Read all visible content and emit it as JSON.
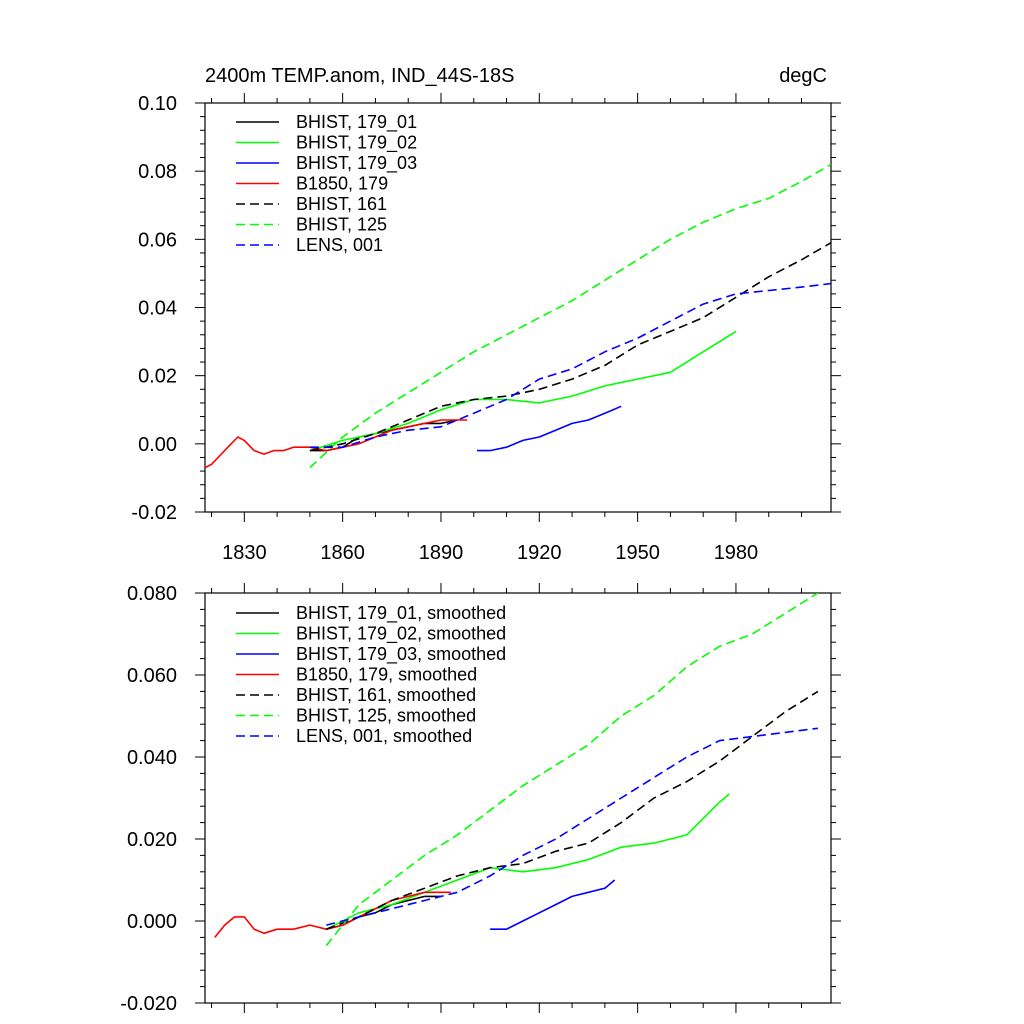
{
  "chart_data": [
    {
      "type": "line",
      "title_left": "2400m TEMP.anom, IND_44S-18S",
      "title_right": "degC",
      "xlim": [
        1818,
        2009
      ],
      "ylim": [
        -0.02,
        0.1
      ],
      "xticks": [
        1830,
        1860,
        1890,
        1920,
        1950,
        1980
      ],
      "xtick_labels": [
        "1830",
        "1860",
        "1890",
        "1920",
        "1950",
        "1980"
      ],
      "yticks": [
        -0.02,
        0.0,
        0.02,
        0.04,
        0.06,
        0.08,
        0.1
      ],
      "ytick_labels": [
        "-0.02",
        "0.00",
        "0.02",
        "0.04",
        "0.06",
        "0.08",
        "0.10"
      ],
      "legend_position": "top-left",
      "series": [
        {
          "name": "BHIST, 179_01",
          "color": "#000000",
          "dash": "solid",
          "x": [
            1850,
            1855,
            1860,
            1865,
            1870,
            1875,
            1880,
            1885,
            1890,
            1895
          ],
          "y": [
            -0.002,
            -0.002,
            -0.001,
            0.002,
            0.003,
            0.004,
            0.005,
            0.006,
            0.006,
            0.007
          ]
        },
        {
          "name": "BHIST, 179_02",
          "color": "#00ff00",
          "dash": "solid",
          "x": [
            1850,
            1860,
            1870,
            1880,
            1890,
            1900,
            1910,
            1920,
            1930,
            1940,
            1950,
            1960,
            1970,
            1980
          ],
          "y": [
            -0.002,
            0.001,
            0.003,
            0.006,
            0.01,
            0.013,
            0.013,
            0.012,
            0.014,
            0.017,
            0.019,
            0.021,
            0.027,
            0.033
          ]
        },
        {
          "name": "BHIST, 179_03",
          "color": "#0000ff",
          "dash": "solid",
          "x": [
            1901,
            1905,
            1910,
            1915,
            1920,
            1925,
            1930,
            1935,
            1940,
            1945
          ],
          "y": [
            -0.002,
            -0.002,
            -0.001,
            0.001,
            0.002,
            0.004,
            0.006,
            0.007,
            0.009,
            0.011
          ]
        },
        {
          "name": "B1850, 179",
          "color": "#ff0000",
          "dash": "solid",
          "x": [
            1818,
            1820,
            1822,
            1825,
            1828,
            1830,
            1833,
            1836,
            1839,
            1842,
            1845,
            1850,
            1855,
            1860,
            1865,
            1870,
            1875,
            1880,
            1885,
            1890,
            1895,
            1898
          ],
          "y": [
            -0.007,
            -0.006,
            -0.004,
            -0.001,
            0.002,
            0.001,
            -0.002,
            -0.003,
            -0.002,
            -0.002,
            -0.001,
            -0.001,
            -0.002,
            -0.001,
            0.0,
            0.002,
            0.004,
            0.005,
            0.006,
            0.007,
            0.007,
            0.007
          ]
        },
        {
          "name": "BHIST, 161",
          "color": "#000000",
          "dash": "dashed",
          "x": [
            1850,
            1860,
            1870,
            1880,
            1890,
            1900,
            1910,
            1920,
            1930,
            1940,
            1950,
            1960,
            1970,
            1980,
            1990,
            2000,
            2009
          ],
          "y": [
            -0.002,
            0.0,
            0.003,
            0.007,
            0.011,
            0.013,
            0.014,
            0.016,
            0.019,
            0.023,
            0.029,
            0.033,
            0.037,
            0.043,
            0.049,
            0.054,
            0.059
          ]
        },
        {
          "name": "BHIST, 125",
          "color": "#00ff00",
          "dash": "dashed",
          "x": [
            1850,
            1860,
            1870,
            1880,
            1890,
            1900,
            1910,
            1920,
            1930,
            1940,
            1950,
            1960,
            1970,
            1980,
            1990,
            2000,
            2009
          ],
          "y": [
            -0.007,
            0.002,
            0.009,
            0.015,
            0.021,
            0.027,
            0.032,
            0.037,
            0.042,
            0.048,
            0.054,
            0.06,
            0.065,
            0.069,
            0.072,
            0.077,
            0.082
          ]
        },
        {
          "name": "LENS, 001",
          "color": "#0000ff",
          "dash": "dashed",
          "x": [
            1850,
            1860,
            1870,
            1880,
            1890,
            1900,
            1910,
            1920,
            1930,
            1940,
            1950,
            1960,
            1970,
            1980,
            1990,
            2000,
            2009
          ],
          "y": [
            -0.001,
            -0.001,
            0.002,
            0.004,
            0.005,
            0.009,
            0.013,
            0.019,
            0.022,
            0.027,
            0.031,
            0.036,
            0.041,
            0.044,
            0.045,
            0.046,
            0.047
          ]
        }
      ]
    },
    {
      "type": "line",
      "xlim": [
        1818,
        2009
      ],
      "ylim": [
        -0.02,
        0.08
      ],
      "xticks": [
        1830,
        1860,
        1890,
        1920,
        1950,
        1980
      ],
      "yticks": [
        -0.02,
        0.0,
        0.02,
        0.04,
        0.06,
        0.08
      ],
      "ytick_labels": [
        "-0.020",
        "0.000",
        "0.020",
        "0.040",
        "0.060",
        "0.080"
      ],
      "legend_position": "top-left",
      "series": [
        {
          "name": "BHIST, 179_01, smoothed",
          "color": "#000000",
          "dash": "solid",
          "x": [
            1855,
            1860,
            1865,
            1870,
            1875,
            1880,
            1885,
            1890
          ],
          "y": [
            -0.002,
            -0.001,
            0.001,
            0.002,
            0.004,
            0.005,
            0.006,
            0.006
          ]
        },
        {
          "name": "BHIST, 179_02, smoothed",
          "color": "#00ff00",
          "dash": "solid",
          "x": [
            1855,
            1865,
            1875,
            1885,
            1895,
            1905,
            1915,
            1925,
            1935,
            1945,
            1955,
            1965,
            1975,
            1978
          ],
          "y": [
            -0.002,
            0.002,
            0.004,
            0.007,
            0.01,
            0.013,
            0.012,
            0.013,
            0.015,
            0.018,
            0.019,
            0.021,
            0.029,
            0.031
          ]
        },
        {
          "name": "BHIST, 179_03, smoothed",
          "color": "#0000ff",
          "dash": "solid",
          "x": [
            1905,
            1910,
            1915,
            1920,
            1925,
            1930,
            1935,
            1940,
            1943
          ],
          "y": [
            -0.002,
            -0.002,
            0.0,
            0.002,
            0.004,
            0.006,
            0.007,
            0.008,
            0.01
          ]
        },
        {
          "name": "B1850, 179, smoothed",
          "color": "#ff0000",
          "dash": "solid",
          "x": [
            1821,
            1824,
            1827,
            1830,
            1833,
            1836,
            1840,
            1845,
            1850,
            1855,
            1860,
            1865,
            1870,
            1875,
            1880,
            1885,
            1890,
            1893
          ],
          "y": [
            -0.004,
            -0.001,
            0.001,
            0.001,
            -0.002,
            -0.003,
            -0.002,
            -0.002,
            -0.001,
            -0.002,
            -0.001,
            0.001,
            0.003,
            0.005,
            0.006,
            0.007,
            0.007,
            0.007
          ]
        },
        {
          "name": "BHIST, 161, smoothed",
          "color": "#000000",
          "dash": "dashed",
          "x": [
            1855,
            1865,
            1875,
            1885,
            1895,
            1905,
            1915,
            1925,
            1935,
            1945,
            1955,
            1965,
            1975,
            1985,
            1995,
            2005
          ],
          "y": [
            -0.002,
            0.001,
            0.005,
            0.008,
            0.011,
            0.013,
            0.014,
            0.017,
            0.019,
            0.024,
            0.03,
            0.034,
            0.039,
            0.045,
            0.051,
            0.056
          ]
        },
        {
          "name": "BHIST, 125, smoothed",
          "color": "#00ff00",
          "dash": "dashed",
          "x": [
            1855,
            1865,
            1875,
            1885,
            1895,
            1905,
            1915,
            1925,
            1935,
            1945,
            1955,
            1965,
            1975,
            1985,
            1995,
            2005
          ],
          "y": [
            -0.006,
            0.004,
            0.01,
            0.016,
            0.021,
            0.027,
            0.033,
            0.038,
            0.043,
            0.05,
            0.055,
            0.062,
            0.067,
            0.07,
            0.075,
            0.08
          ]
        },
        {
          "name": "LENS, 001, smoothed",
          "color": "#0000ff",
          "dash": "dashed",
          "x": [
            1855,
            1865,
            1875,
            1885,
            1895,
            1905,
            1915,
            1925,
            1935,
            1945,
            1955,
            1965,
            1975,
            1985,
            1995,
            2005
          ],
          "y": [
            -0.001,
            0.001,
            0.003,
            0.005,
            0.007,
            0.011,
            0.016,
            0.02,
            0.025,
            0.03,
            0.035,
            0.04,
            0.044,
            0.045,
            0.046,
            0.047
          ]
        }
      ]
    }
  ]
}
